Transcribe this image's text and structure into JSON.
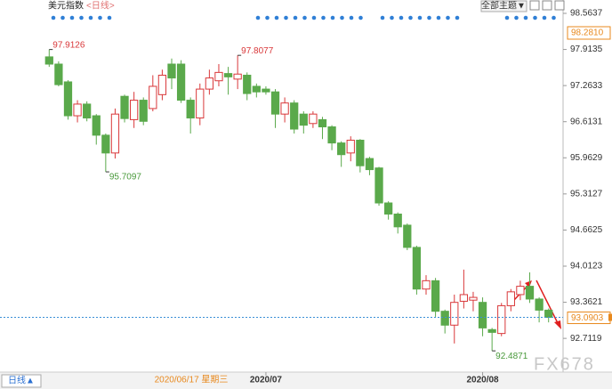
{
  "chart_data": {
    "type": "candlestick",
    "title": "美元指数",
    "period": "<日线>",
    "theme_button": "全部主题▼",
    "period_button": "日线▲",
    "cursor_date": "2020/06/17 星期三",
    "cursor_price": "98.2810",
    "watermark": "FX678",
    "categories": [
      null,
      null,
      null,
      null,
      null,
      null,
      null,
      null,
      null,
      null,
      null,
      null,
      null,
      null,
      null,
      null,
      null,
      null,
      null,
      null,
      null,
      null,
      null,
      "2020/07",
      null,
      null,
      null,
      null,
      null,
      null,
      null,
      null,
      null,
      null,
      null,
      null,
      null,
      null,
      null,
      null,
      null,
      null,
      null,
      null,
      null,
      null,
      "2020/08",
      null,
      null,
      null,
      null,
      null,
      null,
      null
    ],
    "open": [
      97.78,
      97.65,
      97.33,
      96.72,
      96.93,
      96.72,
      96.37,
      96.05,
      97.07,
      96.65,
      97.0,
      96.85,
      97.1,
      97.65,
      97.65,
      97.0,
      96.68,
      97.2,
      97.35,
      97.48,
      97.38,
      97.45,
      97.25,
      97.2,
      97.15,
      96.75,
      96.95,
      96.75,
      96.58,
      96.65,
      96.52,
      96.23,
      96.05,
      96.28,
      95.95,
      95.78,
      95.15,
      94.95,
      94.75,
      94.35,
      93.6,
      93.75,
      93.2,
      92.95,
      93.38,
      93.4,
      93.36,
      92.87,
      92.8,
      93.3,
      93.5,
      93.65,
      93.42,
      93.22
    ],
    "high": [
      97.9126,
      97.7,
      97.36,
      97.0,
      96.98,
      96.75,
      96.4,
      96.85,
      97.1,
      97.15,
      97.05,
      97.45,
      97.55,
      97.75,
      97.72,
      97.05,
      97.3,
      97.55,
      97.65,
      97.6,
      97.8077,
      97.5,
      97.3,
      97.25,
      97.2,
      97.05,
      97.0,
      96.8,
      96.8,
      96.7,
      96.55,
      96.26,
      96.35,
      96.3,
      95.98,
      95.8,
      95.18,
      94.98,
      94.78,
      94.38,
      93.85,
      93.8,
      93.23,
      93.5,
      93.95,
      93.55,
      93.45,
      92.9,
      93.35,
      93.6,
      93.75,
      93.9,
      93.45,
      93.25
    ],
    "low": [
      97.6,
      97.25,
      96.65,
      96.6,
      96.62,
      96.2,
      95.7097,
      95.95,
      96.6,
      96.5,
      96.55,
      96.8,
      97.0,
      97.2,
      96.95,
      96.4,
      96.55,
      97.1,
      97.25,
      97.1,
      97.2,
      97.0,
      97.05,
      97.1,
      96.5,
      96.6,
      96.4,
      96.4,
      96.5,
      96.3,
      96.1,
      95.8,
      95.9,
      95.7,
      95.65,
      95.1,
      94.85,
      94.6,
      94.3,
      93.5,
      93.5,
      93.1,
      92.8,
      92.62,
      93.25,
      93.2,
      92.75,
      92.4871,
      92.75,
      93.2,
      93.4,
      93.35,
      93.0,
      93.0
    ],
    "close": [
      97.65,
      97.28,
      96.72,
      96.93,
      96.68,
      96.37,
      96.05,
      96.75,
      96.67,
      97.0,
      96.62,
      97.25,
      97.45,
      97.4,
      97.0,
      96.68,
      97.2,
      97.4,
      97.5,
      97.42,
      97.47,
      97.12,
      97.15,
      97.15,
      96.75,
      96.95,
      96.48,
      96.55,
      96.75,
      96.52,
      96.23,
      96.02,
      96.28,
      95.82,
      95.75,
      95.15,
      94.95,
      94.72,
      94.35,
      93.6,
      93.75,
      93.2,
      92.95,
      93.36,
      93.5,
      93.45,
      92.9,
      92.82,
      93.3,
      93.55,
      93.65,
      93.42,
      93.22,
      93.0903
    ],
    "up_color": "#d9383a",
    "down_color": "#5aa94b",
    "ylim": [
      92.105,
      98.804
    ],
    "yticks": [
      98.5637,
      97.9135,
      97.2633,
      96.6131,
      95.9629,
      95.3127,
      94.6625,
      94.0123,
      93.3621,
      92.7119
    ]
  }
}
